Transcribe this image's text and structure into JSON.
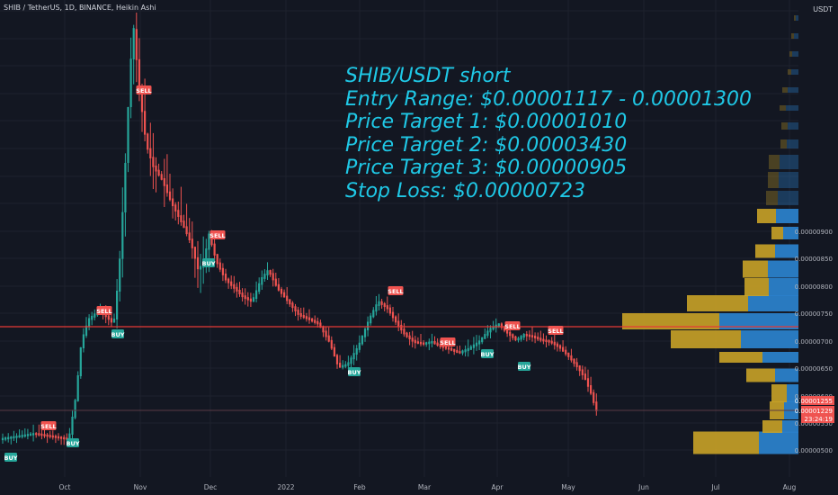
{
  "header": {
    "symbol_line": "SHIB / TetherUS, 1D, BINANCE, Heikin Ashi",
    "currency": "USDT"
  },
  "annotation": {
    "lines": [
      "SHIB/USDT short",
      "Entry Range: $0.00001117 - 0.00001300",
      "Price Target 1: $0.00001010",
      "Price Target 2: $0.00003430",
      "Price Target 3: $0.00000905",
      "Stop Loss: $0.00000723"
    ]
  },
  "colors": {
    "background": "#131722",
    "up": "#26a69a",
    "down": "#ef5350",
    "annotation": "#1fc8e6",
    "sell_label": "#ef5350",
    "buy_label": "#26a69a",
    "vp_up": "#2a7fc9",
    "vp_down": "#c9a227",
    "hline": "#e53935"
  },
  "chart_data": {
    "type": "candlestick",
    "title": "SHIB / TetherUS, 1D, BINANCE, Heikin Ashi",
    "y_axis": {
      "ylim": [
        4.5e-06,
        9.2e-06
      ],
      "tick_values": [
        5e-06,
        5.5e-06,
        6e-06,
        6.5e-06,
        7e-06,
        7.5e-06,
        8e-06,
        8.5e-06,
        9e-06
      ],
      "tick_labels": [
        "0.00000500",
        "0.00000550",
        "0.00000600",
        "0.00000650",
        "0.00000700",
        "0.00000750",
        "0.00000800",
        "0.00000850",
        "0.00000900"
      ]
    },
    "x_axis": {
      "labels": [
        "Oct",
        "Nov",
        "Dec",
        "2022",
        "Feb",
        "Mar",
        "Apr",
        "May",
        "Jun",
        "Jul",
        "Aug"
      ]
    },
    "price_labels": [
      {
        "text": "0.00001255",
        "color": "#ef5350"
      },
      {
        "text": "0.00001229",
        "color": "#ef5350"
      },
      {
        "text": "23:24:19",
        "color": "#ef5350"
      }
    ],
    "signals": [
      {
        "type": "BUY"
      },
      {
        "type": "SELL"
      },
      {
        "type": "BUY"
      },
      {
        "type": "SELL"
      },
      {
        "type": "BUY"
      },
      {
        "type": "SELL"
      },
      {
        "type": "BUY"
      },
      {
        "type": "SELL"
      },
      {
        "type": "BUY"
      },
      {
        "type": "SELL"
      },
      {
        "type": "SELL"
      },
      {
        "type": "BUY"
      },
      {
        "type": "SELL"
      },
      {
        "type": "BUY"
      },
      {
        "type": "SELL"
      }
    ]
  }
}
